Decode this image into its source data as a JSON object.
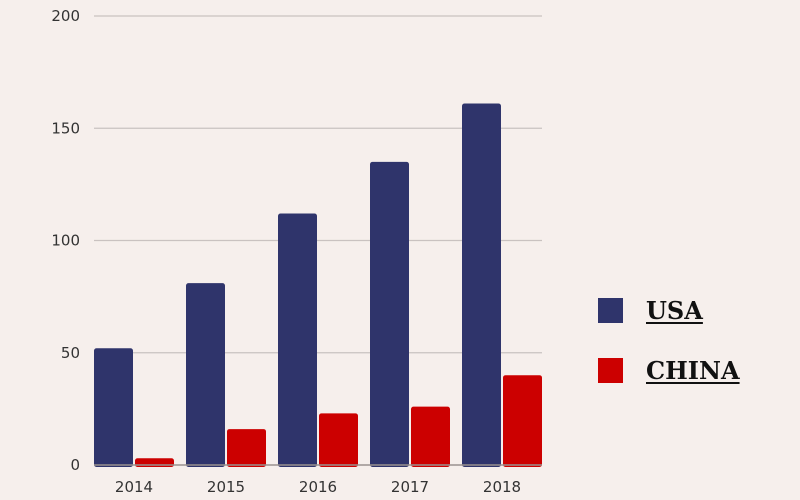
{
  "chart_data": {
    "type": "bar",
    "title": "",
    "xlabel": "",
    "ylabel": "",
    "categories": [
      "2014",
      "2015",
      "2016",
      "2017",
      "2018"
    ],
    "series": [
      {
        "name": "USA",
        "color": "#2f346b",
        "values": [
          52,
          81,
          112,
          135,
          161
        ]
      },
      {
        "name": "CHINA",
        "color": "#cc0000",
        "values": [
          3,
          16,
          23,
          26,
          40
        ]
      }
    ],
    "ylim": [
      0,
      200
    ],
    "yticks": [
      0,
      50,
      100,
      150,
      200
    ],
    "grid": true,
    "legend_position": "right"
  },
  "legend": {
    "items": [
      {
        "label": "USA",
        "color": "#2f346b"
      },
      {
        "label": "CHINA",
        "color": "#cc0000"
      }
    ]
  },
  "colors": {
    "background": "#f6efec",
    "gridline": "#c9c2c0",
    "tick_text": "#333333"
  }
}
